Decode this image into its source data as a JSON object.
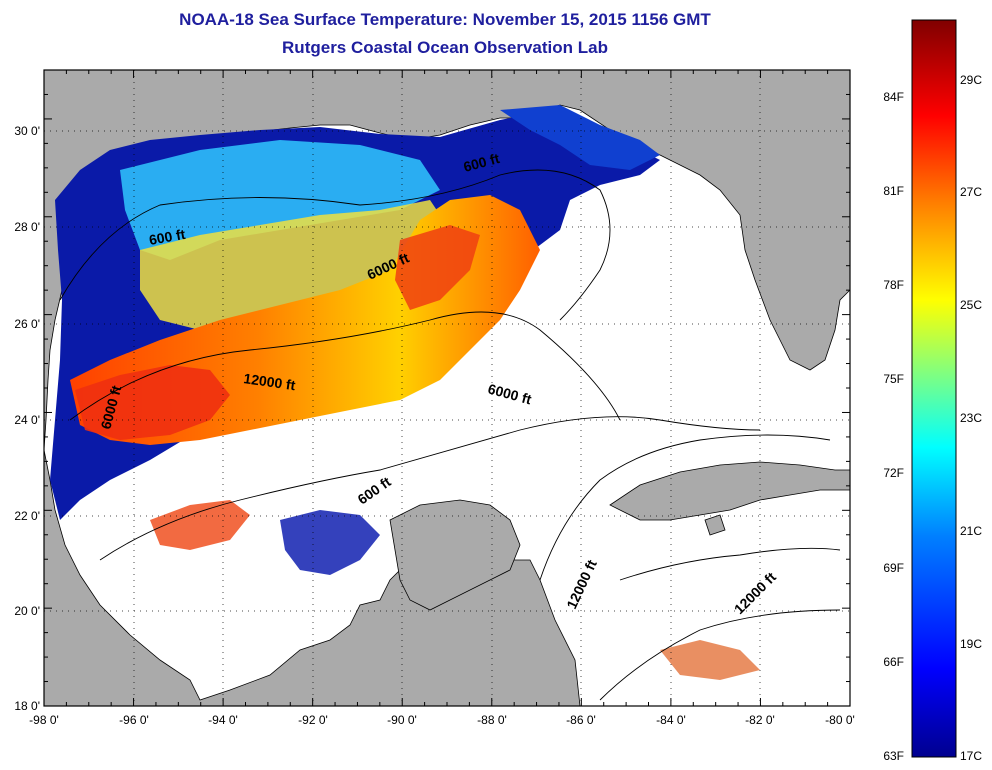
{
  "title": "NOAA-18 Sea Surface Temperature:  November 15, 2015 1156 GMT",
  "subtitle": "Rutgers Coastal Ocean Observation Lab",
  "map": {
    "lon_range": [
      -98,
      -80
    ],
    "lat_range": [
      18,
      31
    ],
    "lon_ticks": [
      "-98 0'",
      "-96 0'",
      "-94 0'",
      "-92 0'",
      "-90 0'",
      "-88 0'",
      "-86 0'",
      "-84 0'",
      "-82 0'",
      "-80 0'"
    ],
    "lat_ticks": [
      "18 0'",
      "20 0'",
      "22 0'",
      "24 0'",
      "26 0'",
      "28 0'",
      "30 0'"
    ],
    "land_color": "#aaaaaa",
    "contour_labels": [
      "600 ft",
      "600 ft",
      "6000 ft",
      "12000 ft",
      "6000 ft",
      "6000 ft",
      "600 ft",
      "12000 ft",
      "12000 ft"
    ]
  },
  "colorbar": {
    "fahrenheit": [
      "63F",
      "66F",
      "69F",
      "72F",
      "75F",
      "78F",
      "81F",
      "84F"
    ],
    "celsius": [
      "17C",
      "19C",
      "21C",
      "23C",
      "25C",
      "27C",
      "29C"
    ],
    "colors": [
      "#00008f",
      "#0000ff",
      "#0080ff",
      "#00ffff",
      "#80ff80",
      "#ffff00",
      "#ff8000",
      "#ff0000",
      "#800000"
    ]
  }
}
